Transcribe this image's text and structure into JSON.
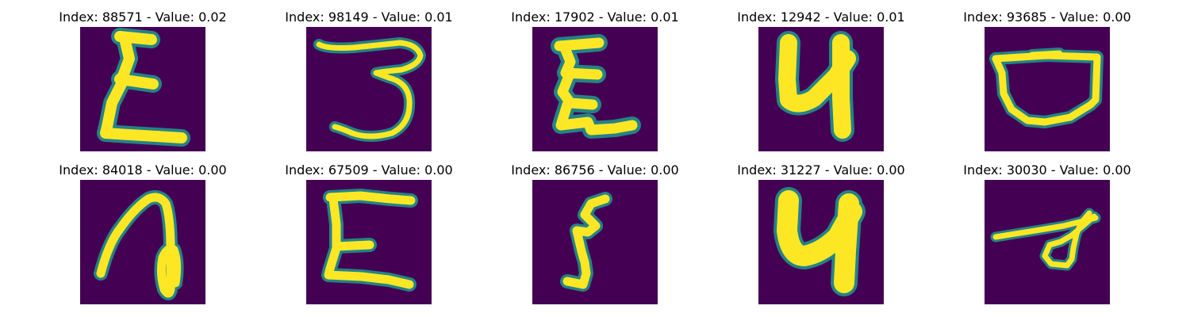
{
  "colors": {
    "background": "#440154",
    "stroke_core": "#fde725",
    "stroke_edge": "#21918c",
    "title_text": "#000000"
  },
  "panels": [
    {
      "title": "Index: 88571 - Value: 0.02",
      "glyph": "E"
    },
    {
      "title": "Index: 98149 - Value: 0.01",
      "glyph": "3"
    },
    {
      "title": "Index: 17902 - Value: 0.01",
      "glyph": "E"
    },
    {
      "title": "Index: 12942 - Value: 0.01",
      "glyph": "4"
    },
    {
      "title": "Index: 93685 - Value: 0.00",
      "glyph": "D"
    },
    {
      "title": "Index: 84018 - Value: 0.00",
      "glyph": "a"
    },
    {
      "title": "Index: 67509 - Value: 0.00",
      "glyph": "E"
    },
    {
      "title": "Index: 86756 - Value: 0.00",
      "glyph": "5"
    },
    {
      "title": "Index: 31227 - Value: 0.00",
      "glyph": "4"
    },
    {
      "title": "Index: 30030 - Value: 0.00",
      "glyph": "d"
    }
  ]
}
